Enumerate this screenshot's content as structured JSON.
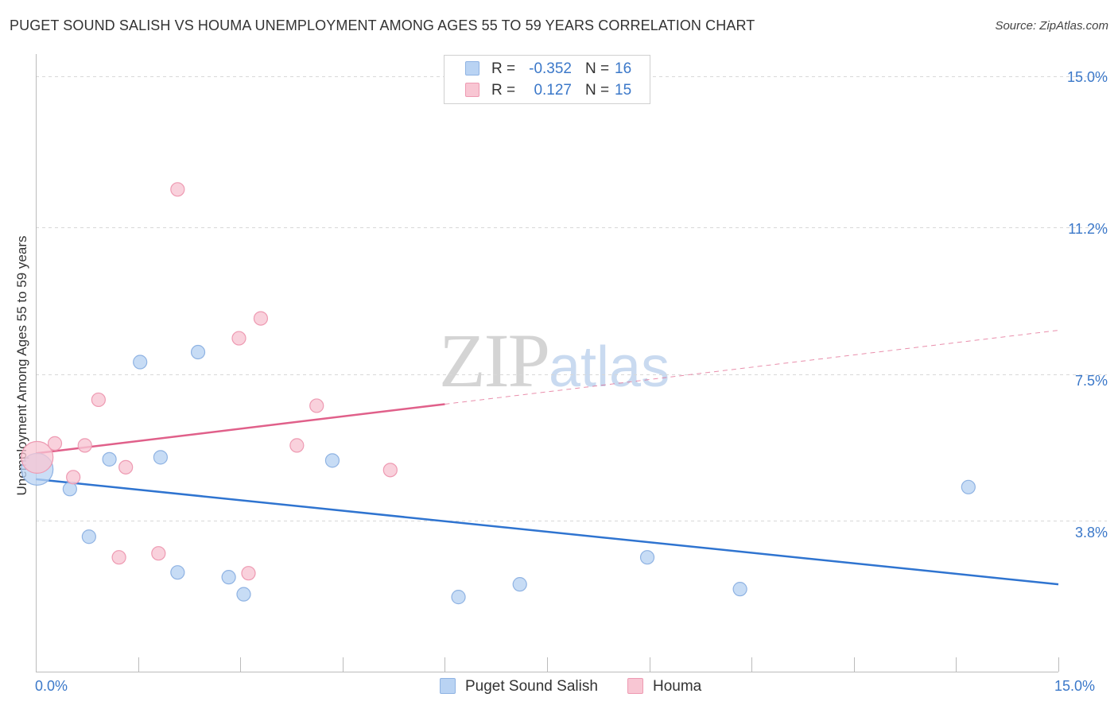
{
  "title": "PUGET SOUND SALISH VS HOUMA UNEMPLOYMENT AMONG AGES 55 TO 59 YEARS CORRELATION CHART",
  "source": "Source: ZipAtlas.com",
  "watermark": {
    "zip": "ZIP",
    "atlas": "atlas"
  },
  "legend": {
    "rows": [
      {
        "r_label": "R =",
        "r_value": "-0.352",
        "n_label": "N =",
        "n_value": "16"
      },
      {
        "r_label": "R =",
        "r_value": "0.127",
        "n_label": "N =",
        "n_value": "15"
      }
    ]
  },
  "colors": {
    "blue_fill": "#b9d3f3",
    "blue_stroke": "#8fb3e3",
    "blue_line": "#2f74d0",
    "pink_fill": "#f8c6d3",
    "pink_stroke": "#ee9ab2",
    "pink_line": "#e0608a",
    "axis_label": "#3b78c9",
    "grid": "#d8d8d8"
  },
  "chart_data": {
    "type": "scatter",
    "title": "PUGET SOUND SALISH VS HOUMA UNEMPLOYMENT AMONG AGES 55 TO 59 YEARS CORRELATION CHART",
    "xlabel": "",
    "ylabel": "Unemployment Among Ages 55 to 59 years",
    "xlim": [
      0,
      15
    ],
    "ylim": [
      0,
      15
    ],
    "x_tick_labels": [
      "0.0%",
      "15.0%"
    ],
    "y_tick_values": [
      3.8,
      7.5,
      11.2,
      15.0
    ],
    "y_tick_labels": [
      "3.8%",
      "7.5%",
      "11.2%",
      "15.0%"
    ],
    "grid": true,
    "series": [
      {
        "name": "Puget Sound Salish",
        "color": "blue",
        "r": -0.352,
        "n": 16,
        "points": [
          {
            "x": 0.02,
            "y": 5.1,
            "large": true
          },
          {
            "x": 0.5,
            "y": 4.6
          },
          {
            "x": 0.78,
            "y": 3.4
          },
          {
            "x": 1.08,
            "y": 5.35
          },
          {
            "x": 1.53,
            "y": 7.8
          },
          {
            "x": 1.83,
            "y": 5.4
          },
          {
            "x": 2.08,
            "y": 2.5
          },
          {
            "x": 2.38,
            "y": 8.05
          },
          {
            "x": 2.83,
            "y": 2.38
          },
          {
            "x": 3.05,
            "y": 1.95
          },
          {
            "x": 4.35,
            "y": 5.32
          },
          {
            "x": 6.2,
            "y": 1.88
          },
          {
            "x": 7.1,
            "y": 2.2
          },
          {
            "x": 8.97,
            "y": 2.88
          },
          {
            "x": 10.33,
            "y": 2.08
          },
          {
            "x": 13.68,
            "y": 4.65
          }
        ],
        "trend": {
          "x0": 0,
          "y0": 4.85,
          "x1": 15,
          "y1": 2.2
        }
      },
      {
        "name": "Houma",
        "color": "pink",
        "r": 0.127,
        "n": 15,
        "points": [
          {
            "x": 0.02,
            "y": 5.4,
            "large": true
          },
          {
            "x": 0.28,
            "y": 5.75
          },
          {
            "x": 0.55,
            "y": 4.9
          },
          {
            "x": 0.72,
            "y": 5.7
          },
          {
            "x": 0.92,
            "y": 6.85
          },
          {
            "x": 1.22,
            "y": 2.88
          },
          {
            "x": 1.32,
            "y": 5.15
          },
          {
            "x": 1.8,
            "y": 2.98
          },
          {
            "x": 2.08,
            "y": 12.15
          },
          {
            "x": 2.98,
            "y": 8.4
          },
          {
            "x": 3.12,
            "y": 2.48
          },
          {
            "x": 3.3,
            "y": 8.9
          },
          {
            "x": 3.83,
            "y": 5.7
          },
          {
            "x": 4.12,
            "y": 6.7
          },
          {
            "x": 5.2,
            "y": 5.08
          }
        ],
        "trend": {
          "x0": 0,
          "y0": 5.5,
          "x1": 15,
          "y1": 8.6,
          "solid_until_x": 6
        }
      }
    ]
  },
  "bottom_legend": [
    {
      "label": "Puget Sound Salish",
      "color": "blue"
    },
    {
      "label": "Houma",
      "color": "pink"
    }
  ]
}
